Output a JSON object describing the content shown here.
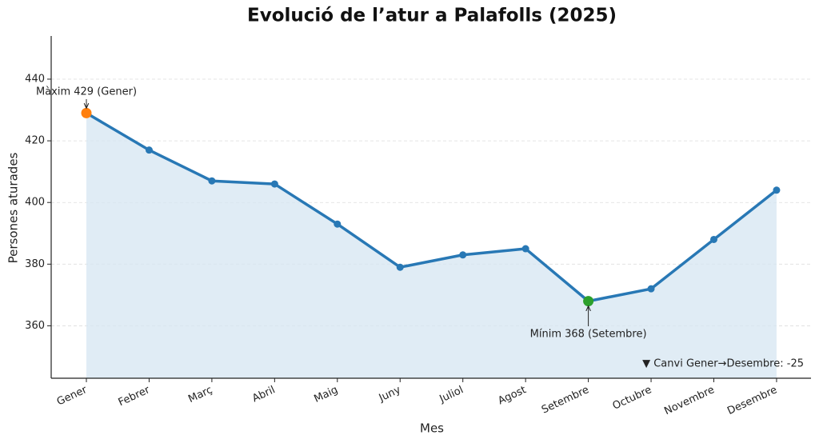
{
  "chart_data": {
    "type": "line",
    "title": "Evolució de l’atur a Palafolls (2025)",
    "x_label": "Mes",
    "y_label": "Persones aturades",
    "categories": [
      "Gener",
      "Febrer",
      "Març",
      "Abril",
      "Maig",
      "Juny",
      "Juliol",
      "Agost",
      "Setembre",
      "Octubre",
      "Novembre",
      "Desembre"
    ],
    "values": [
      429,
      417,
      407,
      406,
      393,
      379,
      383,
      385,
      368,
      372,
      388,
      404
    ],
    "color": "#2878b5",
    "area_color": "#d6e6f2",
    "max_color": "#ff7f0e",
    "min_color": "#2ca02c",
    "ylim": [
      343,
      454
    ],
    "yticks": [
      360,
      380,
      400,
      420,
      440
    ],
    "grid": true,
    "annotations": {
      "max": "Màxim 429 (Gener)",
      "min": "Mínim 368 (Setembre)",
      "change": "▼ Canvi Gener→Desembre: -25"
    }
  }
}
